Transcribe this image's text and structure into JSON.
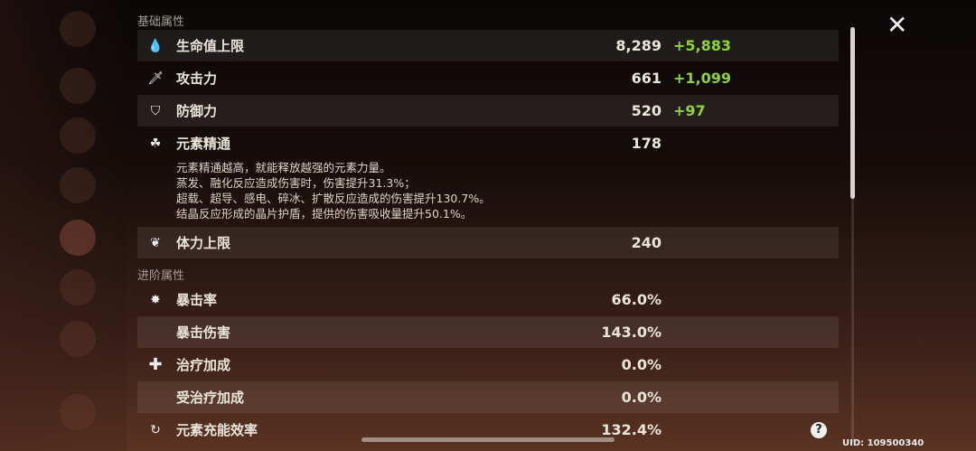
{
  "basic_section": "基础属性",
  "advanced_section": "进阶属性",
  "basic": [
    {
      "icon": "hp-drop-icon",
      "label": "生命值上限",
      "value": "8,289",
      "bonus": "+5,883"
    },
    {
      "icon": "sword-icon",
      "label": "攻击力",
      "value": "661",
      "bonus": "+1,099"
    },
    {
      "icon": "shield-icon",
      "label": "防御力",
      "value": "520",
      "bonus": "+97"
    },
    {
      "icon": "elemental-mastery-icon",
      "label": "元素精通",
      "value": "178",
      "bonus": ""
    },
    {
      "icon": "stamina-icon",
      "label": "体力上限",
      "value": "240",
      "bonus": ""
    }
  ],
  "em_description": [
    "元素精通越高，就能释放越强的元素力量。",
    "蒸发、融化反应造成伤害时，伤害提升31.3%；",
    "超载、超导、感电、碎冰、扩散反应造成的伤害提升130.7%。",
    "结晶反应形成的晶片护盾，提供的伤害吸收量提升50.1%。"
  ],
  "advanced": [
    {
      "icon": "crit-icon",
      "label": "暴击率",
      "value": "66.0%"
    },
    {
      "icon": "",
      "label": "暴击伤害",
      "value": "143.0%"
    },
    {
      "icon": "healing-cross-icon",
      "label": "治疗加成",
      "value": "0.0%"
    },
    {
      "icon": "",
      "label": "受治疗加成",
      "value": "0.0%"
    },
    {
      "icon": "energy-recharge-icon",
      "label": "元素充能效率",
      "value": "132.4%"
    }
  ],
  "help": "?",
  "close": "✕",
  "uid": "UID: 109500340"
}
